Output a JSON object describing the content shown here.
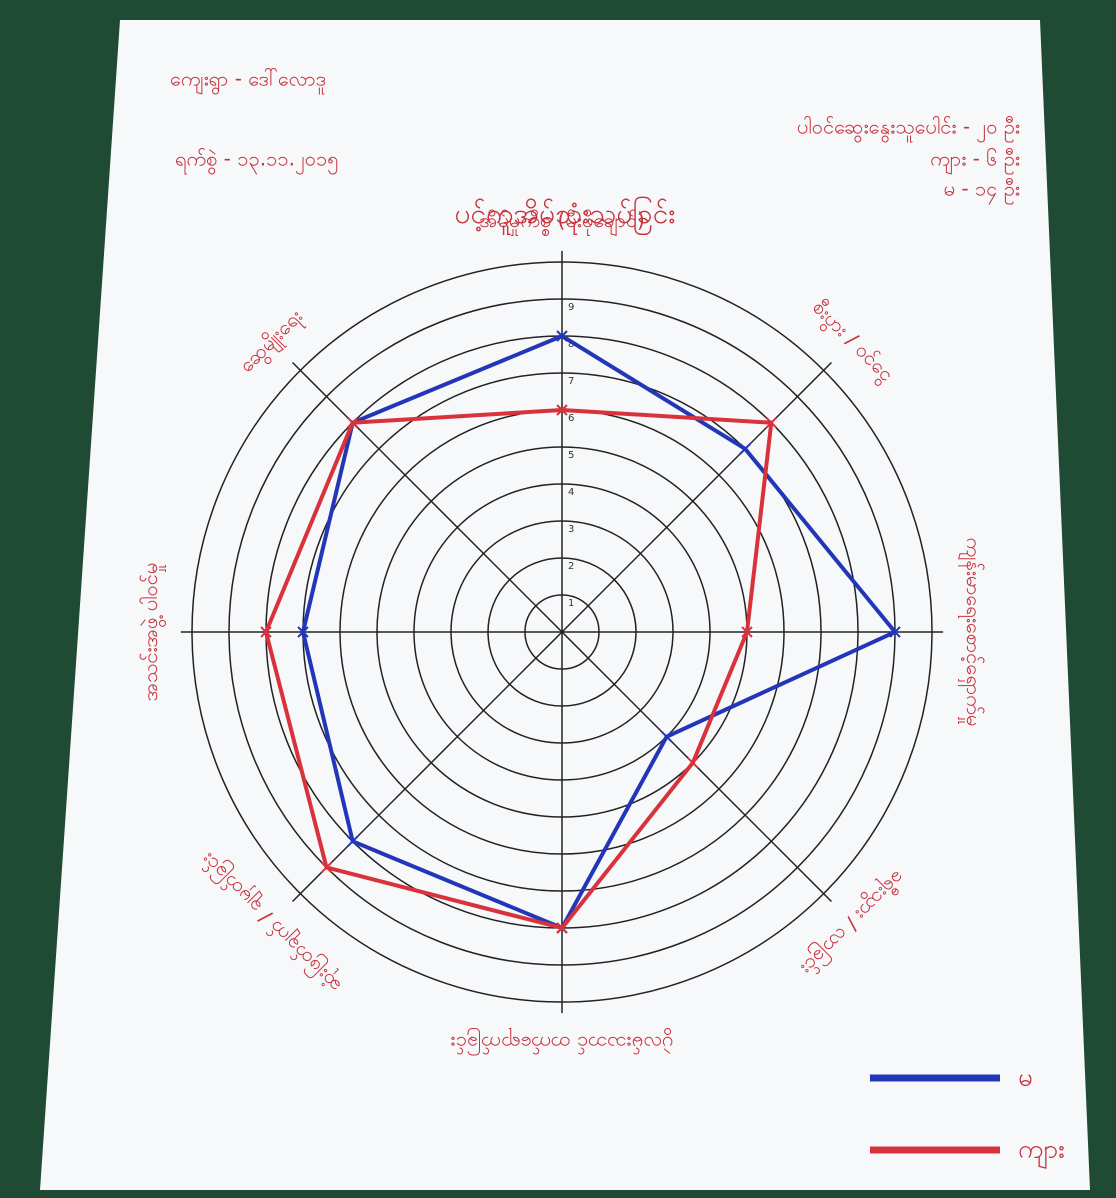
{
  "chart_data": {
    "type": "radar",
    "title": "ပင့်ကူအိမ်သုံးသပ်ခြင်း",
    "village": "ကျေးရွာ - ဒေါ်လောဒူ",
    "date": "ရက်စွဲ - ၁၃.၁၁.၂၀၁၅",
    "participants": [
      "ပါဝင်ဆွေးနွေးသူပေါင်း - ၂၀ ဦး",
      "ကျား - ၆ ဦး",
      "မ - ၁၄ ဦး"
    ],
    "axes": [
      "အိမ်မှုကိစ္စ (မီးဖိုချောင်)",
      "စီးပွား / ဝင်ငွေ",
      "ကျန်းမာရေးစောင့်ရှောက်မှု",
      "ခရီးသွား / လာခြင်း",
      "ပွဲလမ်းသဘင် တက်ရောက်ခြင်း",
      "ဆုံးဖြတ်ချက် / ချမှတ်ခြင်း",
      "အသင်းအဖွဲ့ ပါဝင်မှု",
      "ဆွေမျိုးရေး"
    ],
    "series": [
      {
        "name": "မ",
        "color": "#2236b8",
        "values": [
          8,
          7,
          9,
          4,
          8,
          8,
          7,
          8
        ]
      },
      {
        "name": "ကျား",
        "color": "#d8323c",
        "values": [
          6,
          8,
          5,
          5,
          8,
          9,
          8,
          8
        ]
      }
    ],
    "rlim": [
      0,
      10
    ],
    "rticks": [
      1,
      2,
      3,
      4,
      5,
      6,
      7,
      8,
      9
    ]
  }
}
